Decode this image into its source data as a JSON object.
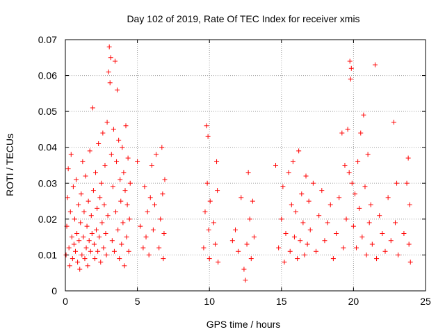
{
  "chart_data": {
    "type": "scatter",
    "title": "Day 102 of 2019, Rate Of TEC Index for receiver xmis",
    "xlabel": "GPS time / hours",
    "ylabel": "ROTI / TECUs",
    "xlim": [
      0,
      25
    ],
    "ylim": [
      0,
      0.07
    ],
    "xticks": [
      0,
      5,
      10,
      15,
      20,
      25
    ],
    "xtick_labels": [
      "0",
      "5",
      "10",
      "15",
      "20",
      "25"
    ],
    "yticks": [
      0,
      0.01,
      0.02,
      0.03,
      0.04,
      0.05,
      0.06,
      0.07
    ],
    "ytick_labels": [
      "0",
      "0.01",
      "0.02",
      "0.03",
      "0.04",
      "0.05",
      "0.06",
      "0.07"
    ],
    "grid": true,
    "marker": "+",
    "color": "#ff0000",
    "series": [
      {
        "points": [
          [
            0.05,
            0.01
          ],
          [
            0.1,
            0.018
          ],
          [
            0.15,
            0.026
          ],
          [
            0.2,
            0.034
          ],
          [
            0.25,
            0.012
          ],
          [
            0.3,
            0.007
          ],
          [
            0.35,
            0.022
          ],
          [
            0.4,
            0.038
          ],
          [
            0.45,
            0.015
          ],
          [
            0.5,
            0.009
          ],
          [
            0.55,
            0.029
          ],
          [
            0.6,
            0.013
          ],
          [
            0.65,
            0.02
          ],
          [
            0.7,
            0.011
          ],
          [
            0.75,
            0.031
          ],
          [
            0.8,
            0.016
          ],
          [
            0.85,
            0.008
          ],
          [
            0.9,
            0.024
          ],
          [
            0.95,
            0.014
          ],
          [
            1.0,
            0.006
          ],
          [
            1.05,
            0.019
          ],
          [
            1.1,
            0.027
          ],
          [
            1.15,
            0.01
          ],
          [
            1.2,
            0.036
          ],
          [
            1.25,
            0.015
          ],
          [
            1.3,
            0.022
          ],
          [
            1.35,
            0.009
          ],
          [
            1.4,
            0.032
          ],
          [
            1.45,
            0.012
          ],
          [
            1.5,
            0.018
          ],
          [
            1.55,
            0.007
          ],
          [
            1.6,
            0.025
          ],
          [
            1.65,
            0.014
          ],
          [
            1.7,
            0.039
          ],
          [
            1.75,
            0.011
          ],
          [
            1.8,
            0.021
          ],
          [
            1.85,
            0.016
          ],
          [
            1.9,
            0.051
          ],
          [
            1.95,
            0.028
          ],
          [
            2.0,
            0.013
          ],
          [
            2.05,
            0.009
          ],
          [
            2.1,
            0.033
          ],
          [
            2.15,
            0.017
          ],
          [
            2.2,
            0.023
          ],
          [
            2.25,
            0.011
          ],
          [
            2.3,
            0.041
          ],
          [
            2.35,
            0.015
          ],
          [
            2.4,
            0.026
          ],
          [
            2.45,
            0.008
          ],
          [
            2.5,
            0.03
          ],
          [
            2.55,
            0.019
          ],
          [
            2.6,
            0.044
          ],
          [
            2.65,
            0.012
          ],
          [
            2.7,
            0.024
          ],
          [
            2.75,
            0.035
          ],
          [
            2.8,
            0.016
          ],
          [
            2.85,
            0.01
          ],
          [
            2.9,
            0.047
          ],
          [
            2.95,
            0.021
          ],
          [
            3.0,
            0.061
          ],
          [
            3.05,
            0.068
          ],
          [
            3.1,
            0.058
          ],
          [
            3.15,
            0.065
          ],
          [
            3.2,
            0.038
          ],
          [
            3.25,
            0.014
          ],
          [
            3.3,
            0.029
          ],
          [
            3.35,
            0.045
          ],
          [
            3.4,
            0.011
          ],
          [
            3.45,
            0.064
          ],
          [
            3.5,
            0.022
          ],
          [
            3.55,
            0.036
          ],
          [
            3.6,
            0.056
          ],
          [
            3.65,
            0.017
          ],
          [
            3.7,
            0.042
          ],
          [
            3.75,
            0.009
          ],
          [
            3.8,
            0.031
          ],
          [
            3.85,
            0.025
          ],
          [
            3.9,
            0.013
          ],
          [
            3.95,
            0.04
          ],
          [
            4.0,
            0.019
          ],
          [
            4.05,
            0.033
          ],
          [
            4.1,
            0.007
          ],
          [
            4.15,
            0.028
          ],
          [
            4.2,
            0.046
          ],
          [
            4.25,
            0.015
          ],
          [
            4.3,
            0.024
          ],
          [
            4.35,
            0.037
          ],
          [
            4.4,
            0.011
          ],
          [
            4.45,
            0.02
          ],
          [
            4.5,
            0.03
          ],
          [
            5.0,
            0.036
          ],
          [
            5.2,
            0.018
          ],
          [
            5.4,
            0.012
          ],
          [
            5.5,
            0.029
          ],
          [
            5.6,
            0.015
          ],
          [
            5.7,
            0.022
          ],
          [
            5.8,
            0.01
          ],
          [
            5.9,
            0.026
          ],
          [
            6.0,
            0.035
          ],
          [
            6.1,
            0.017
          ],
          [
            6.2,
            0.024
          ],
          [
            6.3,
            0.038
          ],
          [
            6.5,
            0.012
          ],
          [
            6.6,
            0.02
          ],
          [
            6.7,
            0.04
          ],
          [
            6.75,
            0.027
          ],
          [
            6.8,
            0.009
          ],
          [
            6.85,
            0.016
          ],
          [
            6.9,
            0.031
          ],
          [
            9.6,
            0.012
          ],
          [
            9.7,
            0.022
          ],
          [
            9.8,
            0.046
          ],
          [
            9.85,
            0.03
          ],
          [
            9.9,
            0.043
          ],
          [
            9.95,
            0.017
          ],
          [
            10.0,
            0.009
          ],
          [
            10.05,
            0.025
          ],
          [
            10.3,
            0.019
          ],
          [
            10.4,
            0.013
          ],
          [
            10.5,
            0.036
          ],
          [
            10.55,
            0.028
          ],
          [
            10.6,
            0.008
          ],
          [
            11.6,
            0.014
          ],
          [
            11.8,
            0.017
          ],
          [
            12.0,
            0.011
          ],
          [
            12.2,
            0.026
          ],
          [
            12.4,
            0.006
          ],
          [
            12.5,
            0.003
          ],
          [
            12.6,
            0.013
          ],
          [
            12.7,
            0.033
          ],
          [
            12.8,
            0.02
          ],
          [
            12.9,
            0.009
          ],
          [
            13.0,
            0.025
          ],
          [
            13.1,
            0.015
          ],
          [
            14.6,
            0.035
          ],
          [
            14.8,
            0.012
          ],
          [
            15.0,
            0.02
          ],
          [
            15.1,
            0.029
          ],
          [
            15.2,
            0.008
          ],
          [
            15.3,
            0.016
          ],
          [
            15.5,
            0.033
          ],
          [
            15.6,
            0.011
          ],
          [
            15.7,
            0.024
          ],
          [
            15.8,
            0.036
          ],
          [
            15.9,
            0.015
          ],
          [
            16.0,
            0.022
          ],
          [
            16.1,
            0.009
          ],
          [
            16.2,
            0.039
          ],
          [
            16.3,
            0.014
          ],
          [
            16.4,
            0.027
          ],
          [
            16.5,
            0.019
          ],
          [
            16.6,
            0.01
          ],
          [
            16.7,
            0.032
          ],
          [
            16.8,
            0.013
          ],
          [
            16.9,
            0.025
          ],
          [
            17.0,
            0.017
          ],
          [
            17.2,
            0.03
          ],
          [
            17.4,
            0.011
          ],
          [
            17.6,
            0.021
          ],
          [
            17.8,
            0.028
          ],
          [
            18.0,
            0.014
          ],
          [
            18.2,
            0.019
          ],
          [
            18.4,
            0.024
          ],
          [
            18.6,
            0.009
          ],
          [
            18.8,
            0.016
          ],
          [
            19.0,
            0.026
          ],
          [
            19.2,
            0.044
          ],
          [
            19.3,
            0.012
          ],
          [
            19.4,
            0.035
          ],
          [
            19.5,
            0.02
          ],
          [
            19.6,
            0.045
          ],
          [
            19.7,
            0.033
          ],
          [
            19.75,
            0.064
          ],
          [
            19.8,
            0.059
          ],
          [
            19.85,
            0.062
          ],
          [
            19.9,
            0.03
          ],
          [
            20.0,
            0.018
          ],
          [
            20.1,
            0.027
          ],
          [
            20.2,
            0.012
          ],
          [
            20.3,
            0.036
          ],
          [
            20.4,
            0.023
          ],
          [
            20.5,
            0.044
          ],
          [
            20.6,
            0.015
          ],
          [
            20.7,
            0.049
          ],
          [
            20.8,
            0.029
          ],
          [
            20.9,
            0.01
          ],
          [
            21.0,
            0.038
          ],
          [
            21.1,
            0.019
          ],
          [
            21.2,
            0.024
          ],
          [
            21.3,
            0.013
          ],
          [
            21.5,
            0.063
          ],
          [
            21.6,
            0.009
          ],
          [
            21.8,
            0.021
          ],
          [
            22.0,
            0.016
          ],
          [
            22.2,
            0.011
          ],
          [
            22.4,
            0.026
          ],
          [
            22.6,
            0.014
          ],
          [
            22.8,
            0.047
          ],
          [
            22.9,
            0.019
          ],
          [
            23.0,
            0.03
          ],
          [
            23.1,
            0.01
          ],
          [
            23.5,
            0.016
          ],
          [
            23.7,
            0.03
          ],
          [
            23.8,
            0.037
          ],
          [
            23.85,
            0.013
          ],
          [
            23.9,
            0.024
          ],
          [
            23.95,
            0.008
          ]
        ]
      }
    ]
  }
}
